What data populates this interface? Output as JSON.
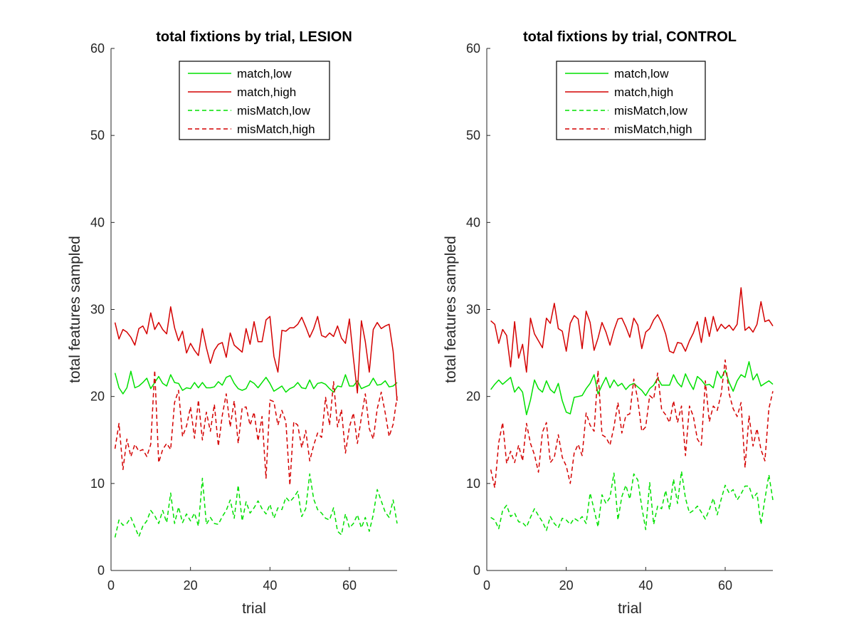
{
  "chart_data": [
    {
      "type": "line",
      "title": "total fixtions by trial, LESION",
      "xlabel": "trial",
      "ylabel": "total features sampled",
      "xlim": [
        0,
        72
      ],
      "ylim": [
        0,
        60
      ],
      "xticks": [
        0,
        20,
        40,
        60
      ],
      "yticks": [
        0,
        10,
        20,
        30,
        40,
        50,
        60
      ],
      "grid": false,
      "legend_position": "top-center",
      "x": [
        1,
        2,
        3,
        4,
        5,
        6,
        7,
        8,
        9,
        10,
        11,
        12,
        13,
        14,
        15,
        16,
        17,
        18,
        19,
        20,
        21,
        22,
        23,
        24,
        25,
        26,
        27,
        28,
        29,
        30,
        31,
        32,
        33,
        34,
        35,
        36,
        37,
        38,
        39,
        40,
        41,
        42,
        43,
        44,
        45,
        46,
        47,
        48,
        49,
        50,
        51,
        52,
        53,
        54,
        55,
        56,
        57,
        58,
        59,
        60,
        61,
        62,
        63,
        64,
        65,
        66,
        67,
        68,
        69,
        70,
        71,
        72
      ],
      "series": [
        {
          "name": "match,low",
          "color": "#00e000",
          "dash": "solid",
          "values": [
            22.7,
            21.0,
            20.3,
            21.0,
            22.9,
            21.0,
            21.2,
            21.6,
            22.1,
            20.9,
            21.6,
            22.3,
            21.5,
            21.2,
            22.5,
            21.6,
            21.5,
            20.7,
            21.0,
            20.9,
            21.6,
            21.0,
            21.6,
            21.0,
            21.0,
            21.1,
            21.7,
            21.3,
            22.2,
            22.4,
            21.5,
            20.9,
            20.7,
            20.9,
            21.8,
            21.5,
            21.0,
            21.6,
            22.2,
            21.5,
            20.6,
            20.9,
            21.2,
            20.5,
            20.9,
            21.1,
            21.6,
            21.0,
            20.9,
            21.9,
            20.9,
            21.5,
            21.6,
            21.4,
            20.9,
            20.5,
            21.2,
            21.1,
            22.5,
            21.2,
            21.2,
            21.8,
            20.9,
            21.1,
            21.3,
            22.1,
            21.3,
            21.4,
            21.8,
            21.1,
            21.2,
            21.6
          ]
        },
        {
          "name": "match,high",
          "color": "#d40000",
          "dash": "solid",
          "values": [
            28.5,
            26.6,
            27.7,
            27.4,
            26.8,
            25.9,
            27.8,
            28.1,
            27.2,
            29.6,
            27.7,
            28.5,
            27.7,
            27.2,
            30.3,
            27.9,
            26.4,
            27.5,
            25.0,
            26.1,
            25.3,
            24.7,
            27.8,
            25.6,
            23.8,
            25.3,
            26.0,
            26.2,
            24.5,
            27.3,
            25.9,
            25.5,
            25.1,
            27.8,
            26.0,
            28.6,
            26.3,
            26.3,
            28.8,
            29.2,
            24.6,
            22.8,
            27.6,
            27.5,
            27.9,
            27.9,
            28.3,
            29.1,
            28.0,
            26.8,
            27.8,
            29.2,
            27.0,
            26.8,
            27.3,
            26.9,
            28.1,
            26.7,
            26.1,
            28.9,
            24.4,
            20.4,
            28.7,
            26.3,
            22.8,
            27.7,
            28.5,
            27.8,
            28.1,
            28.3,
            25.2,
            19.5
          ]
        },
        {
          "name": "misMatch,low",
          "color": "#00e000",
          "dash": "dashed",
          "values": [
            3.8,
            5.8,
            5.2,
            5.4,
            6.1,
            5.0,
            3.9,
            5.1,
            5.7,
            6.9,
            6.3,
            5.4,
            6.9,
            5.5,
            8.9,
            5.4,
            7.3,
            5.5,
            6.5,
            5.7,
            6.6,
            5.1,
            10.6,
            5.3,
            6.1,
            5.4,
            5.3,
            6.2,
            6.9,
            8.1,
            6.0,
            9.8,
            5.7,
            7.9,
            6.6,
            7.2,
            8.0,
            7.1,
            6.5,
            7.6,
            6.0,
            7.2,
            7.0,
            8.4,
            7.9,
            8.4,
            9.1,
            6.2,
            7.1,
            11.1,
            8.2,
            7.0,
            6.6,
            6.0,
            5.8,
            7.2,
            4.5,
            4.1,
            6.5,
            4.9,
            5.4,
            6.4,
            4.9,
            6.1,
            4.5,
            6.4,
            9.3,
            8.0,
            6.7,
            6.1,
            8.1,
            5.4
          ]
        },
        {
          "name": "misMatch,high",
          "color": "#d40000",
          "dash": "dashed",
          "values": [
            14.0,
            16.9,
            11.6,
            15.1,
            13.1,
            14.5,
            13.7,
            13.9,
            13.1,
            14.5,
            23.0,
            12.4,
            13.9,
            14.6,
            13.9,
            19.3,
            20.7,
            15.4,
            16.6,
            18.8,
            15.2,
            19.6,
            15.0,
            18.2,
            16.0,
            19.1,
            14.3,
            17.8,
            20.3,
            16.5,
            19.5,
            14.6,
            18.7,
            18.8,
            16.7,
            18.2,
            14.9,
            17.7,
            10.6,
            19.6,
            19.4,
            16.7,
            18.4,
            17.1,
            9.8,
            17.1,
            16.7,
            14.1,
            16.1,
            12.6,
            14.4,
            15.8,
            15.3,
            19.9,
            16.7,
            21.7,
            16.5,
            18.5,
            13.5,
            16.5,
            18.1,
            14.6,
            17.6,
            20.3,
            16.3,
            15.1,
            18.6,
            20.5,
            18.1,
            15.4,
            16.8,
            20.0
          ]
        }
      ]
    },
    {
      "type": "line",
      "title": "total fixtions by trial, CONTROL",
      "xlabel": "trial",
      "ylabel": "total features sampled",
      "xlim": [
        0,
        72
      ],
      "ylim": [
        0,
        60
      ],
      "xticks": [
        0,
        20,
        40,
        60
      ],
      "yticks": [
        0,
        10,
        20,
        30,
        40,
        50,
        60
      ],
      "grid": false,
      "legend_position": "top-center",
      "x": [
        1,
        2,
        3,
        4,
        5,
        6,
        7,
        8,
        9,
        10,
        11,
        12,
        13,
        14,
        15,
        16,
        17,
        18,
        19,
        20,
        21,
        22,
        23,
        24,
        25,
        26,
        27,
        28,
        29,
        30,
        31,
        32,
        33,
        34,
        35,
        36,
        37,
        38,
        39,
        40,
        41,
        42,
        43,
        44,
        45,
        46,
        47,
        48,
        49,
        50,
        51,
        52,
        53,
        54,
        55,
        56,
        57,
        58,
        59,
        60,
        61,
        62,
        63,
        64,
        65,
        66,
        67,
        68,
        69,
        70,
        71,
        72
      ],
      "series": [
        {
          "name": "match,low",
          "color": "#00e000",
          "dash": "solid",
          "values": [
            20.8,
            21.4,
            21.9,
            21.4,
            21.8,
            22.2,
            20.5,
            21.1,
            20.5,
            17.9,
            19.6,
            21.9,
            20.9,
            20.5,
            21.8,
            20.8,
            20.4,
            21.5,
            19.5,
            18.2,
            18.0,
            19.9,
            20.0,
            20.1,
            20.9,
            21.5,
            22.5,
            20.3,
            21.3,
            22.2,
            21.0,
            21.9,
            21.2,
            21.5,
            20.8,
            21.3,
            21.5,
            21.1,
            20.7,
            20.1,
            20.9,
            21.3,
            22.1,
            21.3,
            21.3,
            21.3,
            22.5,
            21.6,
            21.1,
            22.6,
            21.6,
            20.8,
            22.3,
            21.9,
            21.3,
            21.4,
            21.0,
            22.9,
            22.1,
            23.0,
            21.6,
            20.6,
            21.8,
            22.5,
            22.2,
            24.0,
            21.9,
            22.6,
            21.2,
            21.5,
            21.8,
            21.4
          ]
        },
        {
          "name": "match,high",
          "color": "#d40000",
          "dash": "solid",
          "values": [
            28.7,
            28.3,
            26.1,
            27.7,
            27.0,
            23.4,
            28.6,
            24.4,
            26.0,
            22.8,
            29.0,
            27.2,
            26.4,
            25.6,
            29.0,
            28.4,
            30.7,
            27.8,
            27.5,
            25.2,
            28.4,
            29.3,
            28.9,
            25.5,
            29.8,
            28.5,
            25.3,
            26.7,
            28.5,
            27.4,
            25.9,
            27.6,
            28.9,
            29.0,
            28.0,
            26.8,
            29.0,
            28.2,
            25.5,
            27.4,
            27.8,
            28.8,
            29.4,
            28.5,
            27.2,
            25.2,
            25.0,
            26.2,
            26.1,
            25.2,
            26.4,
            27.3,
            28.6,
            26.2,
            29.1,
            26.9,
            29.2,
            27.5,
            28.3,
            27.8,
            28.2,
            27.6,
            28.3,
            32.5,
            27.6,
            28.0,
            27.4,
            28.3,
            30.9,
            28.6,
            28.8,
            28.1
          ]
        },
        {
          "name": "misMatch,low",
          "color": "#00e000",
          "dash": "dashed",
          "values": [
            6.1,
            5.8,
            4.8,
            6.9,
            7.5,
            6.2,
            6.6,
            5.6,
            5.5,
            5.0,
            6.1,
            7.1,
            6.3,
            5.6,
            4.6,
            6.2,
            5.4,
            4.9,
            6.0,
            5.8,
            5.3,
            6.0,
            5.7,
            6.2,
            5.4,
            8.9,
            7.0,
            5.0,
            8.7,
            7.7,
            8.4,
            11.2,
            5.8,
            8.5,
            9.8,
            8.2,
            11.1,
            10.4,
            7.3,
            4.7,
            10.1,
            5.3,
            7.4,
            7.1,
            9.2,
            7.0,
            10.5,
            7.7,
            11.4,
            8.3,
            6.6,
            6.9,
            7.4,
            6.7,
            5.9,
            7.0,
            8.3,
            6.4,
            8.2,
            9.8,
            8.9,
            9.3,
            8.1,
            8.8,
            9.7,
            9.7,
            8.3,
            8.9,
            5.3,
            8.2,
            11.0,
            8.1
          ]
        },
        {
          "name": "misMatch,high",
          "color": "#d40000",
          "dash": "dashed",
          "values": [
            11.6,
            9.5,
            14.7,
            17.0,
            12.3,
            13.7,
            12.4,
            14.4,
            12.6,
            16.9,
            14.6,
            13.3,
            11.3,
            15.9,
            17.0,
            12.4,
            13.0,
            15.6,
            13.0,
            12.0,
            10.0,
            13.5,
            14.5,
            13.2,
            18.1,
            16.7,
            16.0,
            23.0,
            15.6,
            15.3,
            14.4,
            16.5,
            19.3,
            15.8,
            17.8,
            18.0,
            22.0,
            19.6,
            16.0,
            16.5,
            20.1,
            19.7,
            22.7,
            18.5,
            17.9,
            17.0,
            19.5,
            17.0,
            18.9,
            13.2,
            18.9,
            17.7,
            15.1,
            14.4,
            21.8,
            17.1,
            18.9,
            18.4,
            20.3,
            24.2,
            20.3,
            18.6,
            17.7,
            19.3,
            11.8,
            17.8,
            14.3,
            16.3,
            13.9,
            12.6,
            18.6,
            20.6
          ]
        }
      ]
    }
  ]
}
